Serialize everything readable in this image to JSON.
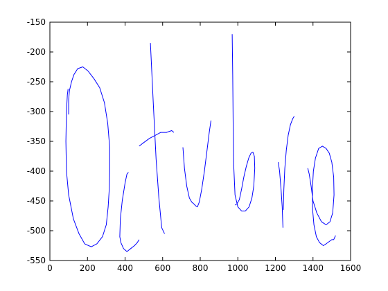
{
  "chart_data": {
    "type": "line",
    "title": "",
    "xlabel": "",
    "ylabel": "",
    "xlim": [
      0,
      1600
    ],
    "ylim": [
      -550,
      -150
    ],
    "xticks": [
      0,
      200,
      400,
      600,
      800,
      1000,
      1200,
      1400,
      1600
    ],
    "yticks": [
      -150,
      -200,
      -250,
      -300,
      -350,
      -400,
      -450,
      -500,
      -550
    ],
    "grid": false,
    "legend": "none",
    "line_color": "#0000ff",
    "series": [
      {
        "x": [
          100,
          100,
          104,
          115,
          128,
          148,
          175,
          203,
          235,
          265,
          290,
          308,
          318,
          318,
          316,
          310,
          300,
          280,
          250,
          220,
          185,
          155,
          125,
          100,
          88,
          85,
          88,
          93,
          97
        ],
        "y": [
          -305,
          -280,
          -265,
          -250,
          -238,
          -228,
          -225,
          -232,
          -245,
          -260,
          -285,
          -320,
          -360,
          -400,
          -430,
          -460,
          -490,
          -510,
          -522,
          -527,
          -522,
          -505,
          -480,
          -440,
          -400,
          -350,
          -300,
          -272,
          -262
        ]
      },
      {
        "x": [
          418,
          410,
          400,
          385,
          375,
          372,
          378,
          392,
          410,
          430,
          450,
          465,
          475
        ],
        "y": [
          -402,
          -405,
          -420,
          -450,
          -480,
          -510,
          -520,
          -530,
          -535,
          -530,
          -525,
          -520,
          -515
        ]
      },
      {
        "x": [
          535,
          550,
          565,
          580,
          595,
          610
        ],
        "y": [
          -185,
          -285,
          -380,
          -445,
          -495,
          -505
        ]
      },
      {
        "x": [
          475,
          500,
          530,
          560,
          590,
          620,
          648,
          660
        ],
        "y": [
          -358,
          -352,
          -345,
          -340,
          -335,
          -335,
          -332,
          -335
        ]
      },
      {
        "x": [
          708,
          716,
          728,
          742,
          755,
          766,
          775,
          785,
          795,
          808,
          822,
          836,
          848,
          857
        ],
        "y": [
          -360,
          -395,
          -425,
          -445,
          -452,
          -455,
          -458,
          -460,
          -452,
          -430,
          -400,
          -365,
          -335,
          -315
        ]
      },
      {
        "x": [
          970,
          973,
          975,
          978,
          985,
          1000,
          1020,
          1040,
          1060,
          1075,
          1085,
          1090,
          1088,
          1080,
          1070,
          1058,
          1045,
          1032,
          1020,
          1008,
          995,
          985
        ],
        "y": [
          -170,
          -240,
          -320,
          -390,
          -440,
          -460,
          -467,
          -467,
          -460,
          -445,
          -425,
          -395,
          -375,
          -368,
          -370,
          -378,
          -392,
          -410,
          -430,
          -448,
          -455,
          -457
        ]
      },
      {
        "x": [
          1215,
          1222,
          1230,
          1236,
          1240
        ],
        "y": [
          -385,
          -400,
          -430,
          -460,
          -495
        ]
      },
      {
        "x": [
          1242,
          1245,
          1250,
          1258,
          1268,
          1280,
          1292,
          1300
        ],
        "y": [
          -465,
          -430,
          -395,
          -365,
          -340,
          -322,
          -312,
          -308
        ]
      },
      {
        "x": [
          1372,
          1380,
          1390,
          1400,
          1420,
          1445,
          1470,
          1490,
          1505,
          1512,
          1510,
          1500,
          1487,
          1470,
          1450,
          1430,
          1413,
          1402,
          1397,
          1398,
          1405,
          1418,
          1435,
          1455,
          1470,
          1487,
          1500,
          1510,
          1520
        ],
        "y": [
          -395,
          -405,
          -425,
          -450,
          -470,
          -485,
          -490,
          -485,
          -470,
          -440,
          -410,
          -385,
          -370,
          -362,
          -358,
          -362,
          -378,
          -400,
          -430,
          -465,
          -490,
          -510,
          -520,
          -525,
          -522,
          -518,
          -515,
          -515,
          -508
        ]
      }
    ]
  }
}
